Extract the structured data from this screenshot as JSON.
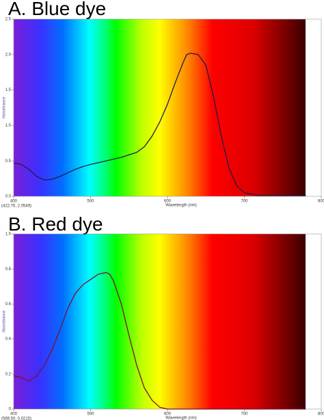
{
  "chart_data": [
    {
      "type": "line",
      "title": "A. Blue dye",
      "x_label": "Wavelength (nm)",
      "y_label": "Absorbance",
      "annotation": "(422.75, 2.0549)",
      "x": [
        400,
        410,
        420,
        430,
        440,
        450,
        460,
        470,
        480,
        490,
        500,
        520,
        540,
        560,
        570,
        580,
        590,
        600,
        610,
        620,
        625,
        630,
        640,
        650,
        660,
        670,
        680,
        690,
        700,
        720,
        780
      ],
      "series": [
        {
          "color": "#1c1c4a",
          "values": [
            0.47,
            0.45,
            0.38,
            0.28,
            0.23,
            0.24,
            0.28,
            0.33,
            0.38,
            0.42,
            0.45,
            0.5,
            0.55,
            0.62,
            0.7,
            0.85,
            1.05,
            1.3,
            1.6,
            1.88,
            2.0,
            2.02,
            2.0,
            1.85,
            1.4,
            0.85,
            0.4,
            0.15,
            0.05,
            0.01,
            0.01
          ]
        }
      ],
      "xlim": [
        400,
        800
      ],
      "xticks": [
        400,
        500,
        600,
        700,
        800
      ],
      "ylim": [
        0,
        2.5
      ],
      "yticks": [
        {
          "value": 0,
          "label": "0.0"
        },
        0.5,
        {
          "value": 1,
          "label": "1.0"
        },
        1.5,
        {
          "value": 2,
          "label": "2.0"
        },
        2.5
      ]
    },
    {
      "type": "line",
      "title": "B. Red dye",
      "x_label": "Wavelength (nm)",
      "y_label": "Absorbance",
      "annotation": "(569.50, 0.0215)",
      "x": [
        400,
        410,
        420,
        430,
        440,
        450,
        460,
        470,
        480,
        490,
        500,
        510,
        520,
        525,
        530,
        540,
        550,
        560,
        570,
        580,
        590,
        600,
        700,
        780
      ],
      "series": [
        {
          "color": "#7a1030",
          "values": [
            0.19,
            0.18,
            0.16,
            0.19,
            0.25,
            0.34,
            0.45,
            0.57,
            0.66,
            0.71,
            0.74,
            0.77,
            0.78,
            0.77,
            0.73,
            0.6,
            0.42,
            0.25,
            0.12,
            0.05,
            0.01,
            0,
            0,
            0
          ]
        }
      ],
      "xlim": [
        400,
        800
      ],
      "xticks": [
        400,
        500,
        600,
        700,
        800
      ],
      "ylim": [
        0,
        1
      ],
      "yticks": [
        0,
        0.2,
        0.4,
        0.6,
        0.8,
        {
          "value": 1,
          "label": "1.0"
        }
      ]
    }
  ]
}
